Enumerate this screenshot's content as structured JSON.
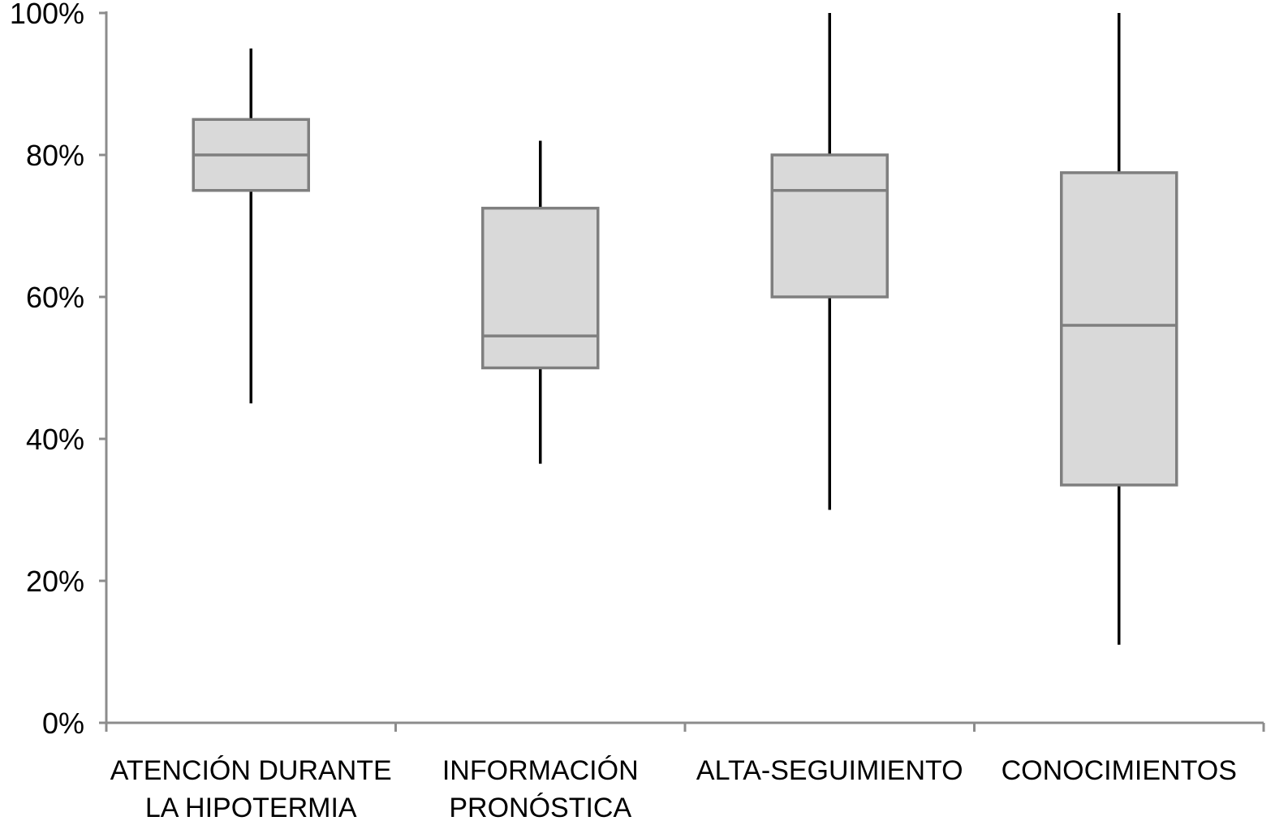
{
  "chart_data": {
    "type": "box",
    "title": "",
    "xlabel": "",
    "ylabel": "",
    "ylim": [
      0,
      100
    ],
    "y_unit": "%",
    "y_ticks": [
      "0%",
      "20%",
      "40%",
      "60%",
      "80%",
      "100%"
    ],
    "y_tick_values": [
      0,
      20,
      40,
      60,
      80,
      100
    ],
    "grid": false,
    "legend": "none",
    "categories": [
      [
        "ATENCIÓN DURANTE",
        "LA HIPOTERMIA"
      ],
      [
        "INFORMACIÓN",
        "PRONÓSTICA"
      ],
      [
        "ALTA-SEGUIMIENTO"
      ],
      [
        "CONOCIMIENTOS"
      ]
    ],
    "boxes": [
      {
        "min": 45,
        "q1": 75,
        "median": 80,
        "q3": 85,
        "max": 95
      },
      {
        "min": 36.5,
        "q1": 50,
        "median": 54.5,
        "q3": 72.5,
        "max": 82
      },
      {
        "min": 30,
        "q1": 60,
        "median": 75,
        "q3": 80,
        "max": 100
      },
      {
        "min": 11,
        "q1": 33.5,
        "median": 56,
        "q3": 77.5,
        "max": 100
      }
    ],
    "colors": {
      "box_fill": "#d9d9d9",
      "box_stroke": "#7f7f7f",
      "whisker": "#000000",
      "axis": "#8c8c8c"
    }
  }
}
